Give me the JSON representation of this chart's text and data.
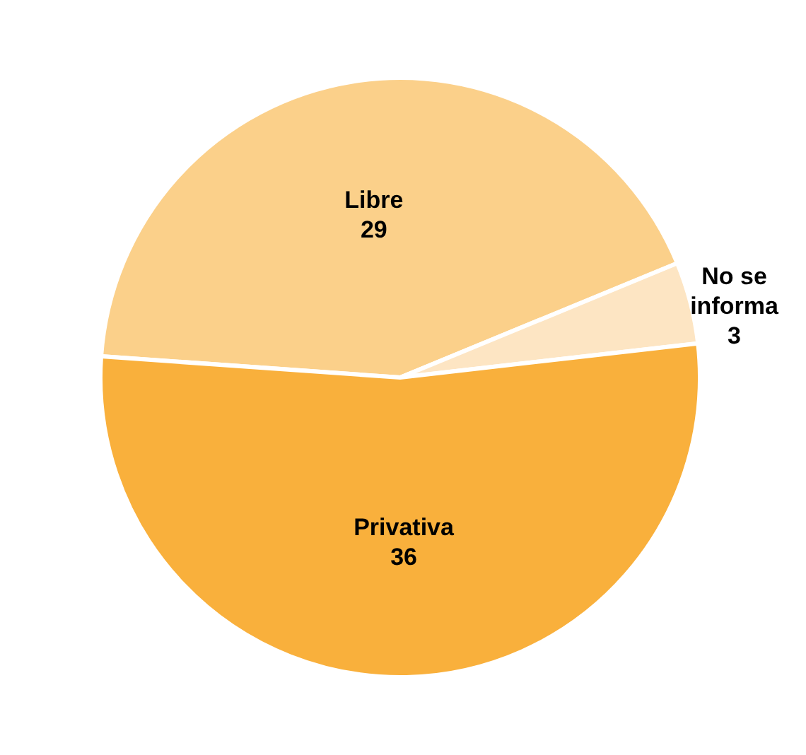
{
  "chart_data": {
    "type": "pie",
    "categories": [
      "Libre",
      "No se informa",
      "Privativa"
    ],
    "values": [
      29,
      3,
      36
    ],
    "colors": [
      "#fbd08a",
      "#fde5c3",
      "#f9b03c"
    ],
    "data_labels": true
  }
}
